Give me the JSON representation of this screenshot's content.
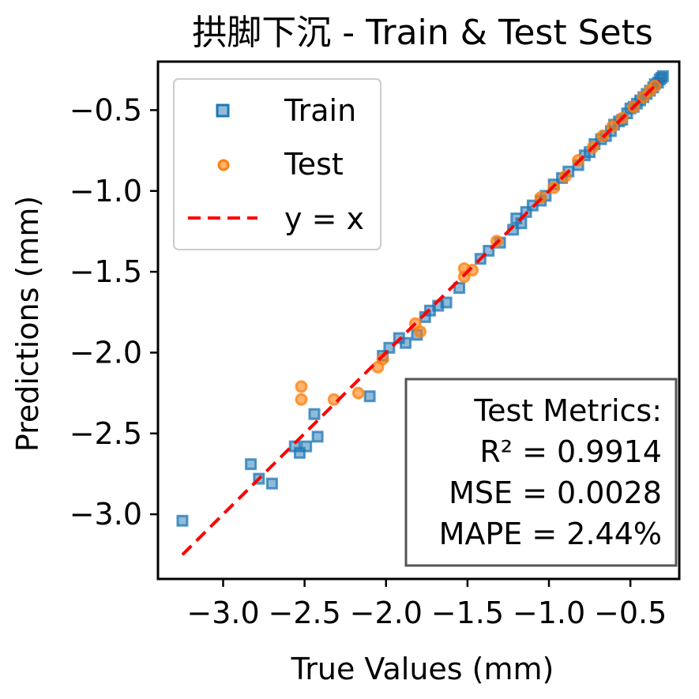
{
  "chart_data": {
    "type": "scatter",
    "title": "拱脚下沉 - Train & Test Sets",
    "xlabel": "True Values (mm)",
    "ylabel": "Predictions (mm)",
    "xlim": [
      -3.4,
      -0.2
    ],
    "ylim": [
      -3.4,
      -0.2
    ],
    "xticks": [
      "−3.0",
      "−2.5",
      "−2.0",
      "−1.5",
      "−1.0",
      "−0.5"
    ],
    "xtick_values": [
      -3.0,
      -2.5,
      -2.0,
      -1.5,
      -1.0,
      -0.5
    ],
    "yticks": [
      "−0.5",
      "−1.0",
      "−1.5",
      "−2.0",
      "−2.5",
      "−3.0"
    ],
    "ytick_values": [
      -0.5,
      -1.0,
      -1.5,
      -2.0,
      -2.5,
      -3.0
    ],
    "grid": false,
    "legend_position": "top-left",
    "series": [
      {
        "name": "Train",
        "marker": "square",
        "color": "#1f77b4",
        "points": [
          [
            -3.25,
            -3.04
          ],
          [
            -2.83,
            -2.69
          ],
          [
            -2.78,
            -2.78
          ],
          [
            -2.7,
            -2.81
          ],
          [
            -2.56,
            -2.58
          ],
          [
            -2.53,
            -2.62
          ],
          [
            -2.49,
            -2.58
          ],
          [
            -2.44,
            -2.38
          ],
          [
            -2.42,
            -2.52
          ],
          [
            -2.1,
            -2.27
          ],
          [
            -2.02,
            -2.02
          ],
          [
            -1.98,
            -1.97
          ],
          [
            -1.92,
            -1.91
          ],
          [
            -1.88,
            -1.94
          ],
          [
            -1.81,
            -1.89
          ],
          [
            -1.76,
            -1.78
          ],
          [
            -1.73,
            -1.74
          ],
          [
            -1.68,
            -1.71
          ],
          [
            -1.63,
            -1.69
          ],
          [
            -1.55,
            -1.6
          ],
          [
            -1.42,
            -1.42
          ],
          [
            -1.37,
            -1.37
          ],
          [
            -1.3,
            -1.32
          ],
          [
            -1.22,
            -1.24
          ],
          [
            -1.2,
            -1.17
          ],
          [
            -1.17,
            -1.2
          ],
          [
            -1.14,
            -1.13
          ],
          [
            -1.1,
            -1.09
          ],
          [
            -1.05,
            -1.06
          ],
          [
            -1.02,
            -1.03
          ],
          [
            -0.97,
            -0.96
          ],
          [
            -0.92,
            -0.92
          ],
          [
            -0.88,
            -0.88
          ],
          [
            -0.82,
            -0.84
          ],
          [
            -0.78,
            -0.78
          ],
          [
            -0.75,
            -0.76
          ],
          [
            -0.72,
            -0.71
          ],
          [
            -0.68,
            -0.68
          ],
          [
            -0.65,
            -0.66
          ],
          [
            -0.62,
            -0.63
          ],
          [
            -0.6,
            -0.59
          ],
          [
            -0.57,
            -0.57
          ],
          [
            -0.55,
            -0.56
          ],
          [
            -0.52,
            -0.52
          ],
          [
            -0.5,
            -0.49
          ],
          [
            -0.48,
            -0.48
          ],
          [
            -0.46,
            -0.46
          ],
          [
            -0.44,
            -0.44
          ],
          [
            -0.42,
            -0.42
          ],
          [
            -0.4,
            -0.4
          ],
          [
            -0.38,
            -0.38
          ],
          [
            -0.36,
            -0.36
          ],
          [
            -0.35,
            -0.34
          ],
          [
            -0.33,
            -0.33
          ],
          [
            -0.32,
            -0.31
          ],
          [
            -0.31,
            -0.3
          ],
          [
            -0.3,
            -0.29
          ]
        ]
      },
      {
        "name": "Test",
        "marker": "circle",
        "color": "#ff7f0e",
        "points": [
          [
            -2.52,
            -2.21
          ],
          [
            -2.52,
            -2.29
          ],
          [
            -2.32,
            -2.29
          ],
          [
            -2.17,
            -2.25
          ],
          [
            -2.05,
            -2.09
          ],
          [
            -2.02,
            -2.04
          ],
          [
            -1.82,
            -1.82
          ],
          [
            -1.79,
            -1.87
          ],
          [
            -1.52,
            -1.48
          ],
          [
            -1.52,
            -1.53
          ],
          [
            -1.47,
            -1.49
          ],
          [
            -1.32,
            -1.31
          ],
          [
            -1.05,
            -1.04
          ],
          [
            -0.97,
            -0.98
          ],
          [
            -0.9,
            -0.91
          ],
          [
            -0.82,
            -0.81
          ],
          [
            -0.73,
            -0.73
          ],
          [
            -0.67,
            -0.66
          ],
          [
            -0.61,
            -0.6
          ],
          [
            -0.55,
            -0.55
          ],
          [
            -0.48,
            -0.48
          ],
          [
            -0.42,
            -0.42
          ],
          [
            -0.38,
            -0.38
          ],
          [
            -0.35,
            -0.35
          ]
        ]
      }
    ],
    "reference_line": {
      "name": "y = x",
      "color": "#ff0000",
      "from": [
        -3.25,
        -3.25
      ],
      "to": [
        -0.32,
        -0.32
      ]
    }
  },
  "legend": {
    "train_label": "Train",
    "test_label": "Test",
    "line_label": "y = x"
  },
  "metrics": {
    "heading": "Test Metrics:",
    "r2": "R² = 0.9914",
    "mse": "MSE = 0.0028",
    "mape": "MAPE = 2.44%"
  }
}
